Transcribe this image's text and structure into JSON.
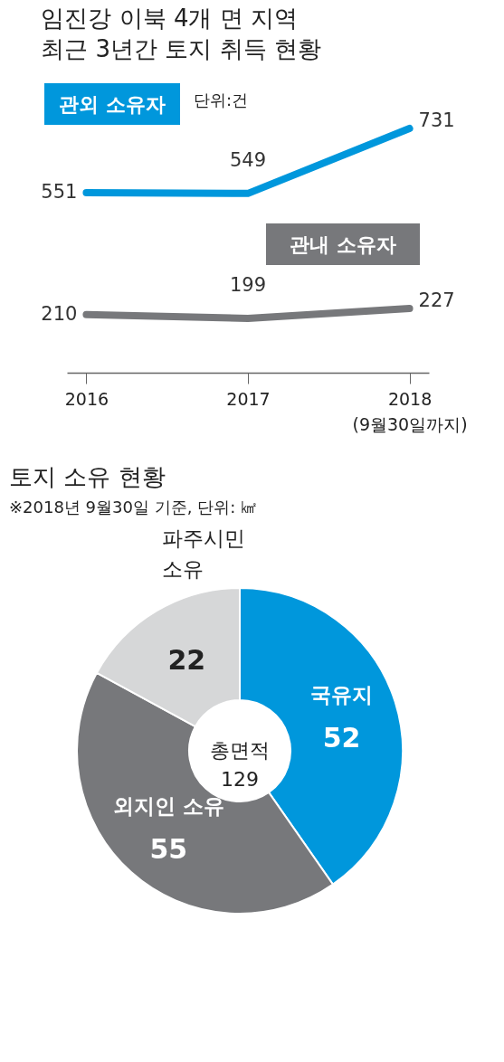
{
  "chart_data": [
    {
      "type": "line",
      "title": "임진강 이북 4개 면 지역\n최근 3년간 토지 취득 현황",
      "categories": [
        "2016",
        "2017",
        "2018\n(9월30일까지)"
      ],
      "series": [
        {
          "name": "관외 소유자",
          "color": "#0097dc",
          "values": [
            551,
            549,
            731
          ]
        },
        {
          "name": "관내 소유자",
          "color": "#77787b",
          "values": [
            210,
            199,
            227
          ]
        }
      ],
      "data_labels": true,
      "annotations": [
        "단위:건"
      ]
    },
    {
      "type": "donut",
      "title": "토지 소유 현황",
      "subtitle": "※2018년 9월30일 기준, 단위: ㎢",
      "categories": [
        "국유지",
        "외지인 소유",
        "파주시민\n소유"
      ],
      "values": [
        52,
        55,
        22
      ],
      "colors": [
        "#0097dc",
        "#77787b",
        "#d6d7d8"
      ],
      "data_labels": true,
      "annotations": [
        "총면적\n129"
      ]
    }
  ]
}
